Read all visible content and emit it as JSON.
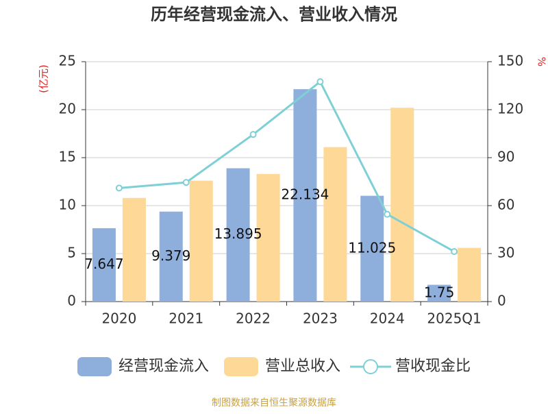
{
  "chart_data": {
    "type": "bar",
    "title": "历年经营现金流入、营业收入情况",
    "y_label": "(亿元)",
    "y2_label": "%",
    "source": "制图数据来自恒生聚源数据库",
    "categories": [
      "2020",
      "2021",
      "2022",
      "2023",
      "2024",
      "2025Q1"
    ],
    "series": [
      {
        "name": "经营现金流入",
        "type": "bar",
        "color": "#8eaedb",
        "values": [
          7.647,
          9.379,
          13.895,
          22.134,
          11.025,
          1.75
        ],
        "show_labels": true
      },
      {
        "name": "营业总收入",
        "type": "bar",
        "color": "#fdd897",
        "values": [
          10.8,
          12.6,
          13.3,
          16.1,
          20.2,
          5.6
        ]
      },
      {
        "name": "营收现金比",
        "type": "line",
        "axis": "y2",
        "color": "#7fd0d6",
        "values": [
          71,
          74.5,
          104.5,
          137.5,
          54.6,
          31.3
        ]
      }
    ],
    "ylim": [
      0,
      25
    ],
    "yticks": [
      0,
      5,
      10,
      15,
      20,
      25
    ],
    "y2lim": [
      0,
      150
    ],
    "y2ticks": [
      0,
      30,
      60,
      90,
      120,
      150
    ],
    "grid": true,
    "legend": "bottom"
  }
}
